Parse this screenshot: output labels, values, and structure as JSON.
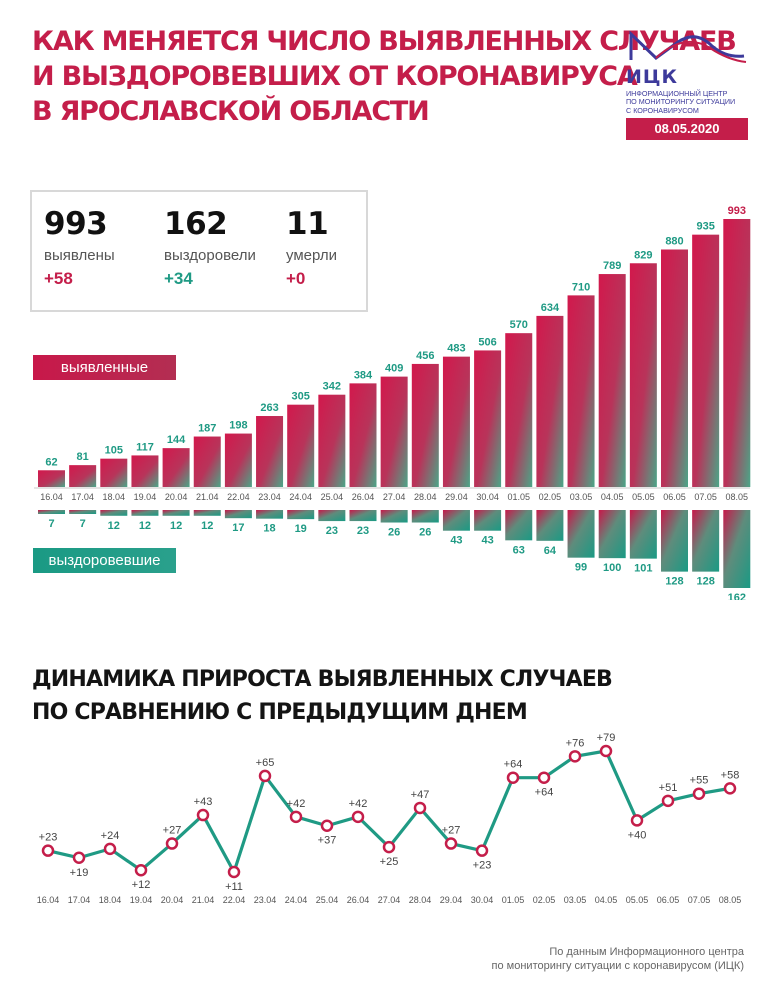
{
  "header": {
    "title_lines": [
      "КАК МЕНЯЕТСЯ ЧИСЛО ВЫЯВЛЕННЫХ СЛУЧАЕВ",
      "И ВЫЗДОРОВЕВШИХ ОТ КОРОНАВИРУСА",
      "В ЯРОСЛАВСКОЙ ОБЛАСТИ"
    ],
    "logo_name": "ИЦК",
    "logo_sub": [
      "ИНФОРМАЦИОННЫЙ ЦЕНТР",
      "ПО МОНИТОРИНГУ СИТУАЦИИ",
      "С КОРОНАВИРУСОМ"
    ],
    "date": "08.05.2020"
  },
  "stats": {
    "detected": {
      "value": "993",
      "label": "выявлены",
      "delta": "+58"
    },
    "recovered": {
      "value": "162",
      "label": "выздоровели",
      "delta": "+34"
    },
    "died": {
      "value": "11",
      "label": "умерли",
      "delta": "+0"
    }
  },
  "legend": {
    "detected": "выявленные",
    "recovered": "выздоровевшие"
  },
  "colors": {
    "accent": "#c41e4a",
    "green": "#1f9a84",
    "text": "#1a1a1a",
    "brand": "#3d3a9b"
  },
  "chart_data": [
    {
      "type": "bar",
      "categories": [
        "16.04",
        "17.04",
        "18.04",
        "19.04",
        "20.04",
        "21.04",
        "22.04",
        "23.04",
        "24.04",
        "25.04",
        "26.04",
        "27.04",
        "28.04",
        "29.04",
        "30.04",
        "01.05",
        "02.05",
        "03.05",
        "04.05",
        "05.05",
        "06.05",
        "07.05",
        "08.05"
      ],
      "series": [
        {
          "name": "выявленные",
          "values": [
            62,
            81,
            105,
            117,
            144,
            187,
            198,
            263,
            305,
            342,
            384,
            409,
            456,
            483,
            506,
            570,
            634,
            710,
            789,
            829,
            880,
            935,
            993
          ]
        },
        {
          "name": "выздоровевшие",
          "values": [
            7,
            7,
            12,
            12,
            12,
            12,
            17,
            18,
            19,
            23,
            23,
            26,
            26,
            43,
            43,
            63,
            64,
            99,
            100,
            101,
            128,
            128,
            162
          ]
        }
      ]
    },
    {
      "type": "line",
      "title_lines": [
        "ДИНАМИКА ПРИРОСТА ВЫЯВЛЕННЫХ СЛУЧАЕВ",
        "ПО СРАВНЕНИЮ С ПРЕДЫДУЩИМ ДНЕМ"
      ],
      "categories": [
        "16.04",
        "17.04",
        "18.04",
        "19.04",
        "20.04",
        "21.04",
        "22.04",
        "23.04",
        "24.04",
        "25.04",
        "26.04",
        "27.04",
        "28.04",
        "29.04",
        "30.04",
        "01.05",
        "02.05",
        "03.05",
        "04.05",
        "05.05",
        "06.05",
        "07.05",
        "08.05"
      ],
      "values": [
        23,
        19,
        24,
        12,
        27,
        43,
        11,
        65,
        42,
        37,
        42,
        25,
        47,
        27,
        23,
        64,
        64,
        76,
        79,
        40,
        51,
        55,
        58
      ],
      "labels": [
        "+23",
        "+19",
        "+24",
        "+12",
        "+27",
        "+43",
        "+11",
        "+65",
        "+42",
        "+37",
        "+42",
        "+25",
        "+47",
        "+27",
        "+23",
        "+64",
        "+64",
        "+76",
        "+79",
        "+40",
        "+51",
        "+55",
        "+58"
      ]
    }
  ],
  "source": [
    "По данным Информационного центра",
    "по мониторингу ситуации с коронавирусом (ИЦК)"
  ]
}
